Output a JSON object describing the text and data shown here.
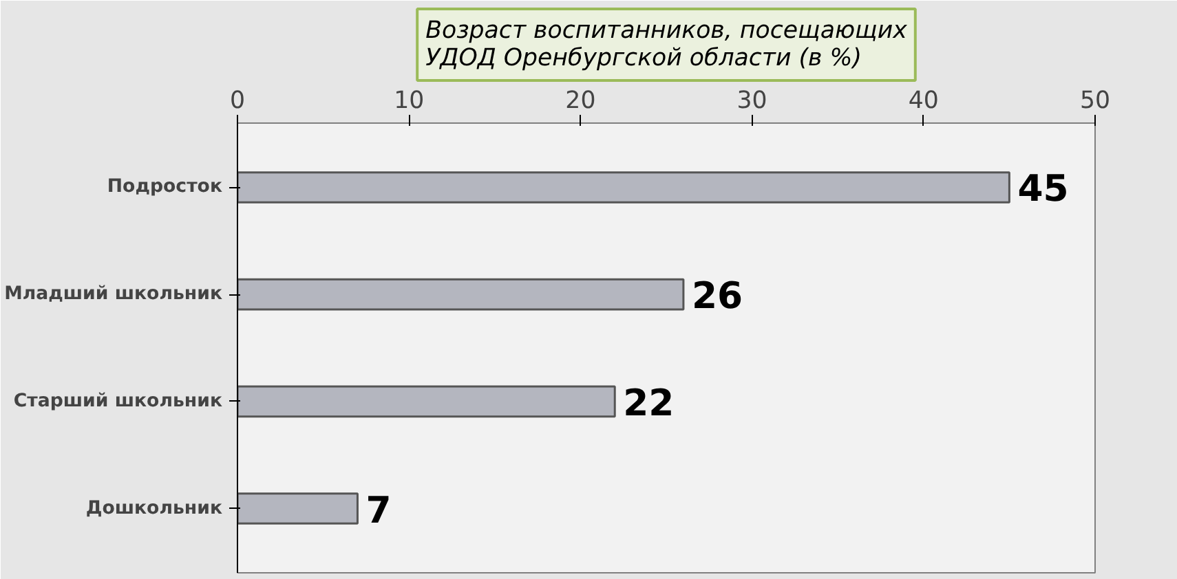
{
  "chart_data": {
    "type": "bar",
    "orientation": "horizontal",
    "title": "Возраст воспитанников, посещающих\nУДОД Оренбургской области (в %)",
    "categories": [
      "Подросток",
      "Младший школьник",
      "Старший школьник",
      "Дошкольник"
    ],
    "values": [
      45,
      26,
      22,
      7
    ],
    "color": "#b4b6bf",
    "xlim": [
      0,
      50
    ],
    "xticks": [
      0,
      10,
      20,
      30,
      40,
      50
    ],
    "grid": false,
    "data_labels": true
  }
}
